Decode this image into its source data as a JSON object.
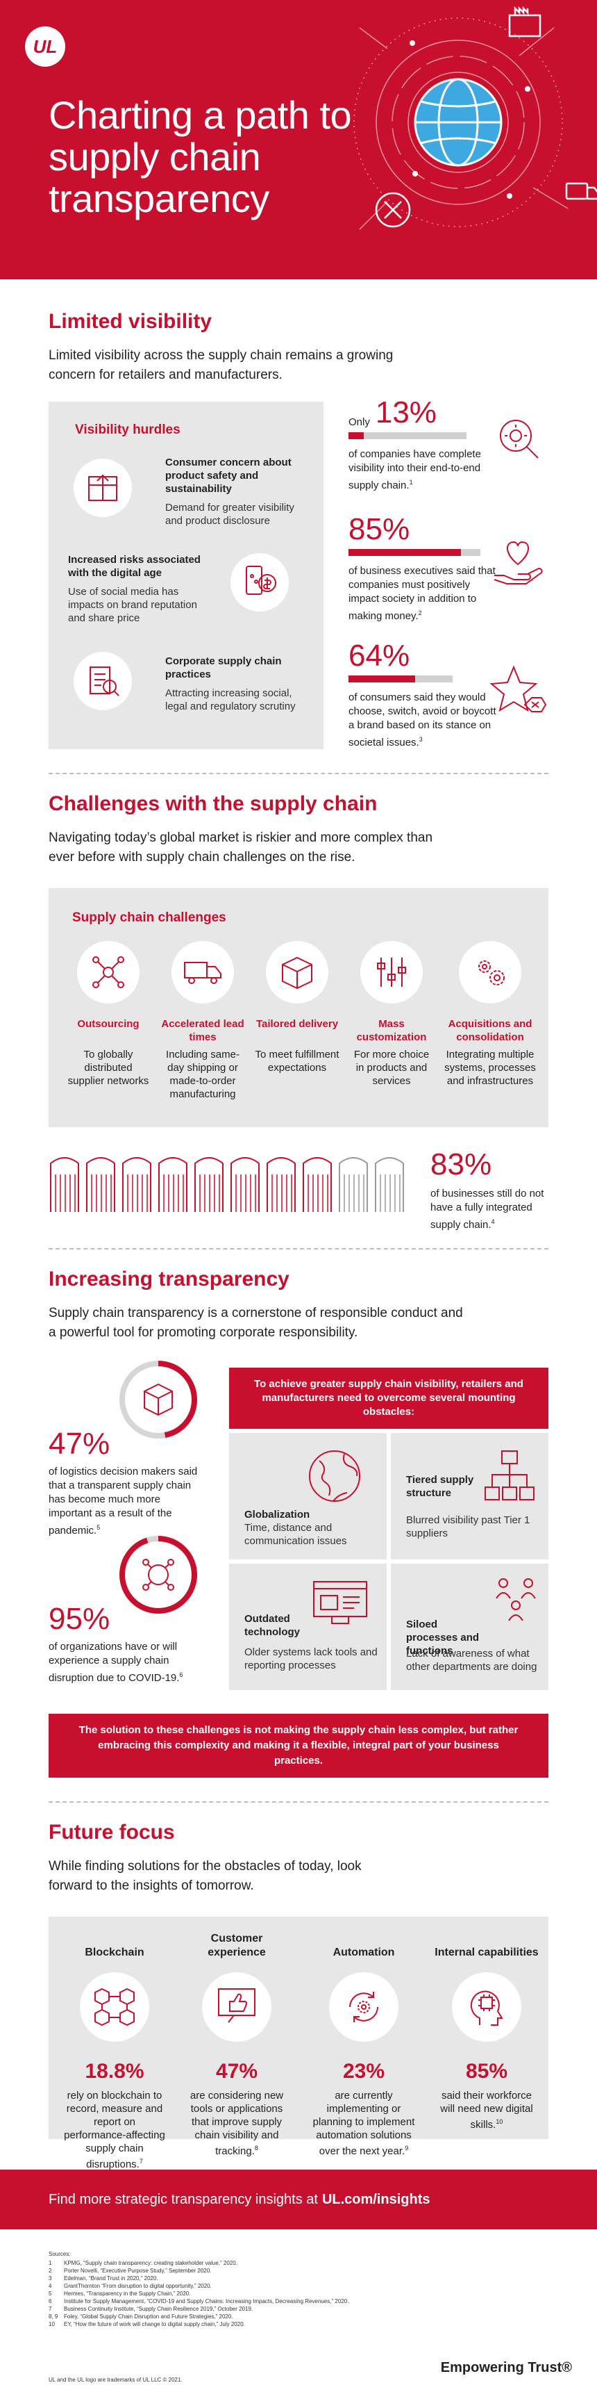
{
  "header": {
    "logo_text": "UL",
    "title": "Charting a path to supply chain transparency"
  },
  "limited_visibility": {
    "title": "Limited visibility",
    "intro": "Limited visibility across the supply chain remains a growing concern for retailers and manufacturers.",
    "panel_heading": "Visibility hurdles",
    "hurdles": [
      {
        "title": "Consumer concern about product safety and sustainability",
        "desc": "Demand for greater visibility and product disclosure",
        "icon": "package-inspection-icon"
      },
      {
        "title": "Increased risks associated with the digital age",
        "desc": "Use of social media has impacts on brand reputation and share price",
        "icon": "share-dollar-icon"
      },
      {
        "title": "Corporate supply chain practices",
        "desc": "Attracting increasing social, legal and regulatory scrutiny",
        "icon": "document-magnify-icon"
      }
    ],
    "stats": [
      {
        "prefix": "Only",
        "value": "13%",
        "fraction": 0.13,
        "text": "of companies have complete visibility into their end-to-end supply chain.",
        "note": "1",
        "icon": "magnify-gear-icon"
      },
      {
        "prefix": "",
        "value": "85%",
        "fraction": 0.85,
        "text": "of business executives said that companies must positively impact society in addition to making money.",
        "note": "2",
        "icon": "heart-hand-icon"
      },
      {
        "prefix": "",
        "value": "64%",
        "fraction": 0.64,
        "text": "of consumers said they would choose, switch, avoid or boycott a brand based on its stance on societal issues.",
        "note": "3",
        "icon": "star-x-icon"
      }
    ]
  },
  "challenges": {
    "title": "Challenges with the supply chain",
    "intro": "Navigating today’s global market is riskier and more complex than ever before with supply chain challenges on the rise.",
    "panel_heading": "Supply chain challenges",
    "items": [
      {
        "title": "Outsourcing",
        "desc": "To globally distributed supplier networks",
        "icon": "network-icon"
      },
      {
        "title": "Accelerated lead times",
        "desc": "Including same-day shipping or made-to-order manufacturing",
        "icon": "truck-icon"
      },
      {
        "title": "Tailored delivery",
        "desc": "To meet fulfillment expectations",
        "icon": "box-icon"
      },
      {
        "title": "Mass customization",
        "desc": "For more choice in products and services",
        "icon": "sliders-icon"
      },
      {
        "title": "Acquisitions and consolidation",
        "desc": "Integrating multiple systems, processes and infrastructures",
        "icon": "gears-icon"
      }
    ],
    "stat": {
      "value": "83%",
      "fraction": 0.83,
      "text": "of businesses still do not have a fully integrated supply chain.",
      "note": "4",
      "icon": "warehouse-icon"
    }
  },
  "transparency": {
    "title": "Increasing transparency",
    "intro": "Supply chain transparency is a cornerstone of responsible conduct and a powerful tool for promoting corporate responsibility.",
    "stats": [
      {
        "value": "47%",
        "fraction": 0.47,
        "text": "of logistics decision makers said that a transparent supply chain has become much more important as a result of the pandemic.",
        "note": "5",
        "icon": "cube-icon"
      },
      {
        "value": "95%",
        "fraction": 0.95,
        "text": "of organizations have or will experience a supply chain disruption due to COVID-19.",
        "note": "6",
        "icon": "virus-network-icon"
      }
    ],
    "obstacles_heading": "To achieve greater supply chain visibility, retailers and manufacturers need to overcome several mounting obstacles:",
    "obstacles": [
      {
        "title": "Globalization",
        "desc": "Time, distance and communication issues",
        "icon": "globe-icon"
      },
      {
        "title": "Tiered supply structure",
        "desc": "Blurred visibility past Tier 1 suppliers",
        "icon": "hierarchy-icon"
      },
      {
        "title": "Outdated technology",
        "desc": "Older systems lack tools and reporting processes",
        "icon": "monitor-icon"
      },
      {
        "title": "Siloed processes and functions",
        "desc": "Lack of awareness of what other departments are doing",
        "icon": "people-icon"
      }
    ],
    "banner": "The solution to these challenges is not making the supply chain less complex, but rather embracing this complexity and making it a flexible, integral part of your business practices."
  },
  "future": {
    "title": "Future focus",
    "intro": "While finding solutions for the obstacles of today, look forward to the insights of tomorrow.",
    "items": [
      {
        "title": "Blockchain",
        "stat": "18.8%",
        "desc": "rely on blockchain to record, measure and report on performance-affecting supply chain disruptions.",
        "note": "7",
        "icon": "blocks-icon"
      },
      {
        "title": "Customer experience",
        "stat": "47%",
        "desc": "are considering new tools or applications that improve supply chain visibility and tracking.",
        "note": "8",
        "icon": "thumbs-up-icon"
      },
      {
        "title": "Automation",
        "stat": "23%",
        "desc": "are currently implementing or planning to implement automation solutions over the next year.",
        "note": "9",
        "icon": "cycle-gear-icon"
      },
      {
        "title": "Internal capabilities",
        "stat": "85%",
        "desc": "said their workforce will need new digital skills.",
        "note": "10",
        "icon": "head-chip-icon"
      }
    ]
  },
  "footer": {
    "cta_prefix": "Find more strategic transparency insights at",
    "cta_link": "UL.com/insights",
    "sources_label": "Sources:",
    "sources": [
      {
        "n": "1",
        "text": "KPMG, “Supply chain transparency: creating stakeholder value,” 2020."
      },
      {
        "n": "2",
        "text": "Porter Novelli, “Executive Purpose Study,” September 2020."
      },
      {
        "n": "3",
        "text": "Edelman, “Brand Trust in 2020,” 2020."
      },
      {
        "n": "4",
        "text": "GrantThornton “From disruption to digital opportunity,” 2020."
      },
      {
        "n": "5",
        "text": "Hermes, “Transparency in the Supply Chain,” 2020."
      },
      {
        "n": "6",
        "text": "Institute for Supply Management, “COVID-19 and Supply Chains: Increasing Impacts, Decreasing Revenues,” 2020."
      },
      {
        "n": "7",
        "text": "Business Continuity Institute, “Supply Chain Resilience 2019,” October 2019."
      },
      {
        "n": "8, 9",
        "text": "Foley, “Global Supply Chain Disruption and Future Strategies,” 2020."
      },
      {
        "n": "10",
        "text": "EY, “How the future of work will change to digital supply chain,” July 2020."
      }
    ],
    "trademark": "UL and the UL logo are trademarks of UL LLC © 2021.",
    "tagline": "Empowering Trust®"
  },
  "colors": {
    "brand_red": "#c8102e",
    "panel_grey": "#e7e7e7"
  }
}
